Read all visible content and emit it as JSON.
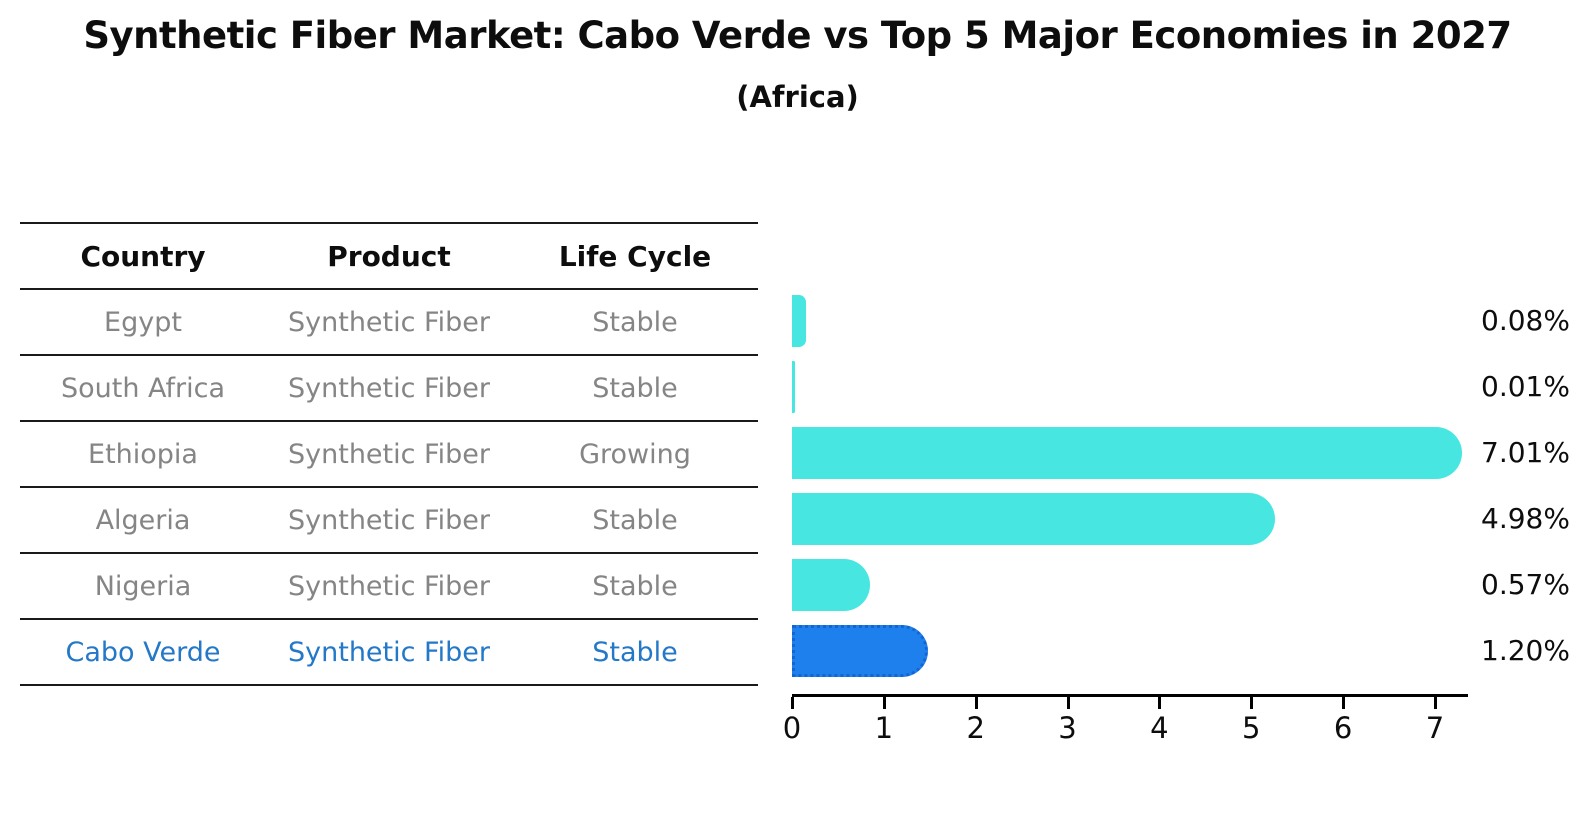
{
  "title": "Synthetic Fiber Market: Cabo Verde vs Top 5 Major Economies in 2027",
  "subtitle": "(Africa)",
  "table": {
    "headers": [
      "Country",
      "Product",
      "Life Cycle"
    ],
    "rows": [
      {
        "country": "Egypt",
        "product": "Synthetic Fiber",
        "life_cycle": "Stable",
        "highlighted": false
      },
      {
        "country": "South Africa",
        "product": "Synthetic Fiber",
        "life_cycle": "Stable",
        "highlighted": false
      },
      {
        "country": "Ethiopia",
        "product": "Synthetic Fiber",
        "life_cycle": "Growing",
        "highlighted": false
      },
      {
        "country": "Algeria",
        "product": "Synthetic Fiber",
        "life_cycle": "Stable",
        "highlighted": false
      },
      {
        "country": "Nigeria",
        "product": "Synthetic Fiber",
        "life_cycle": "Stable",
        "highlighted": false
      },
      {
        "country": "Cabo Verde",
        "product": "Synthetic Fiber",
        "life_cycle": "Stable",
        "highlighted": true
      }
    ]
  },
  "chart_data": {
    "type": "bar",
    "orientation": "horizontal",
    "title": "Synthetic Fiber Market: Cabo Verde vs Top 5 Major Economies in 2027 (Africa)",
    "categories": [
      "Egypt",
      "South Africa",
      "Ethiopia",
      "Algeria",
      "Nigeria",
      "Cabo Verde"
    ],
    "values": [
      0.08,
      0.01,
      7.01,
      4.98,
      0.57,
      1.2
    ],
    "value_labels": [
      "0.08%",
      "0.01%",
      "7.01%",
      "4.98%",
      "0.57%",
      "1.20%"
    ],
    "x_ticks": [
      "0",
      "1",
      "2",
      "3",
      "4",
      "5",
      "6",
      "7"
    ],
    "xlim": [
      0,
      7.36
    ],
    "grid": false,
    "legend": "none",
    "bar_color": "#47E6E1",
    "highlight_color": "#1E80ED",
    "highlight_index": 5
  }
}
